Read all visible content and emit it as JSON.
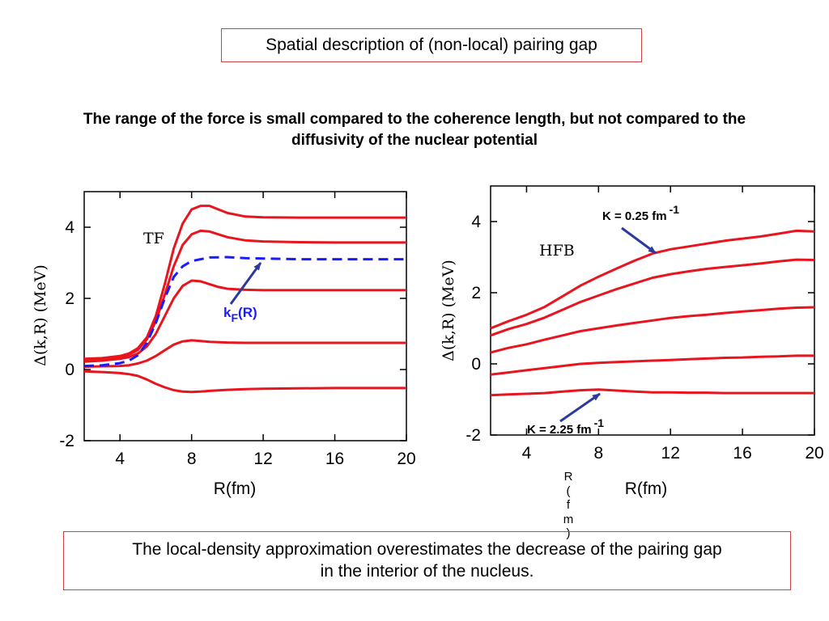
{
  "slide": {
    "title": "Spatial description of (non-local) pairing gap",
    "subtitle_line1": "The range of the force is small compared to the coherence length, but not compared to the",
    "subtitle_line2": "diffusivity  of the nuclear potential",
    "conclusion_line1": "The local-density approximation overestimates the decrease of the pairing gap",
    "conclusion_line2": "in the interior of the nucleus.",
    "stray_text": [
      "R",
      "(",
      "f",
      "m",
      ")"
    ]
  },
  "colors": {
    "curve": "#e8141e",
    "kf": "#1a1aff",
    "arrow": "#2b3a9c",
    "box_border": "#d04040"
  },
  "chart_data": [
    {
      "type": "line",
      "annotation": "TF",
      "xlabel": "R(fm)",
      "ylabel": "Δ(k,R) (MeV)",
      "xlim": [
        2,
        20
      ],
      "ylim": [
        -2,
        5
      ],
      "xticks": [
        "4",
        "8",
        "12",
        "16",
        "20"
      ],
      "yticks": [
        "-2",
        "0",
        "2",
        "4"
      ],
      "kf_label": "k",
      "kf_sub": "F",
      "kf_suffix": "(R)",
      "series": [
        {
          "x": [
            2,
            3,
            4,
            4.5,
            5,
            5.5,
            6,
            6.5,
            7,
            7.5,
            8,
            8.5,
            9,
            9.5,
            10,
            11,
            12,
            14,
            16,
            18,
            20
          ],
          "y": [
            0.3,
            0.32,
            0.38,
            0.45,
            0.6,
            0.9,
            1.5,
            2.4,
            3.4,
            4.1,
            4.5,
            4.6,
            4.6,
            4.5,
            4.4,
            4.3,
            4.28,
            4.27,
            4.27,
            4.27,
            4.27
          ]
        },
        {
          "x": [
            2,
            3,
            4,
            4.5,
            5,
            5.5,
            6,
            6.5,
            7,
            7.5,
            8,
            8.5,
            9,
            9.5,
            10,
            11,
            12,
            14,
            16,
            18,
            20
          ],
          "y": [
            0.27,
            0.3,
            0.35,
            0.42,
            0.55,
            0.85,
            1.35,
            2.1,
            2.9,
            3.5,
            3.8,
            3.9,
            3.88,
            3.8,
            3.72,
            3.63,
            3.6,
            3.58,
            3.57,
            3.57,
            3.57
          ]
        },
        {
          "x": [
            2,
            3,
            4,
            4.5,
            5,
            5.5,
            6,
            6.5,
            7,
            7.5,
            8,
            8.5,
            9,
            9.5,
            10,
            11,
            12,
            14,
            16,
            18,
            20
          ],
          "y": [
            0.22,
            0.25,
            0.3,
            0.35,
            0.45,
            0.65,
            1.0,
            1.5,
            2.0,
            2.35,
            2.5,
            2.48,
            2.4,
            2.32,
            2.27,
            2.24,
            2.23,
            2.23,
            2.23,
            2.23,
            2.23
          ]
        },
        {
          "x": [
            2,
            3,
            4,
            4.5,
            5,
            5.5,
            6,
            6.5,
            7,
            7.5,
            8,
            8.5,
            9,
            10,
            11,
            12,
            14,
            16,
            18,
            20
          ],
          "y": [
            0.08,
            0.09,
            0.1,
            0.12,
            0.17,
            0.25,
            0.38,
            0.54,
            0.7,
            0.79,
            0.82,
            0.8,
            0.78,
            0.76,
            0.75,
            0.75,
            0.75,
            0.75,
            0.75,
            0.75
          ]
        },
        {
          "x": [
            2,
            3,
            4,
            4.5,
            5,
            5.5,
            6,
            6.5,
            7,
            7.5,
            8,
            8.5,
            9,
            10,
            11,
            12,
            14,
            16,
            18,
            20
          ],
          "y": [
            -0.05,
            -0.07,
            -0.1,
            -0.13,
            -0.18,
            -0.28,
            -0.4,
            -0.5,
            -0.58,
            -0.62,
            -0.63,
            -0.62,
            -0.6,
            -0.57,
            -0.55,
            -0.54,
            -0.53,
            -0.52,
            -0.52,
            -0.52
          ]
        }
      ],
      "kf_series": {
        "x": [
          2,
          3,
          4,
          4.5,
          5,
          5.5,
          6,
          6.5,
          7,
          7.5,
          8,
          8.5,
          9,
          10,
          11,
          12,
          14,
          16,
          18,
          20
        ],
        "y": [
          0.1,
          0.12,
          0.18,
          0.25,
          0.4,
          0.75,
          1.3,
          2.0,
          2.6,
          2.9,
          3.05,
          3.1,
          3.15,
          3.16,
          3.13,
          3.12,
          3.1,
          3.1,
          3.1,
          3.1
        ]
      }
    },
    {
      "type": "line",
      "annotation": "HFB",
      "xlabel": "R(fm)",
      "ylabel": "Δ(k,R) (MeV)",
      "xlim": [
        2,
        20
      ],
      "ylim": [
        -2,
        5
      ],
      "xticks": [
        "4",
        "8",
        "12",
        "16",
        "20"
      ],
      "yticks": [
        "-2",
        "0",
        "2",
        "4"
      ],
      "label_top": "K = 0.25 fm",
      "label_top_exp": "-1",
      "label_bottom": "K = 2.25 fm",
      "label_bottom_exp": "-1",
      "series": [
        {
          "x": [
            2,
            3,
            4,
            5,
            6,
            7,
            8,
            9,
            10,
            11,
            12,
            13,
            14,
            15,
            16,
            17,
            18,
            19,
            20
          ],
          "y": [
            1.0,
            1.2,
            1.38,
            1.6,
            1.9,
            2.2,
            2.45,
            2.68,
            2.9,
            3.1,
            3.22,
            3.3,
            3.38,
            3.46,
            3.52,
            3.58,
            3.66,
            3.74,
            3.72
          ]
        },
        {
          "x": [
            2,
            3,
            4,
            5,
            6,
            7,
            8,
            9,
            10,
            11,
            12,
            13,
            14,
            15,
            16,
            17,
            18,
            19,
            20
          ],
          "y": [
            0.8,
            0.98,
            1.12,
            1.3,
            1.52,
            1.74,
            1.92,
            2.1,
            2.26,
            2.42,
            2.52,
            2.6,
            2.67,
            2.72,
            2.77,
            2.82,
            2.88,
            2.93,
            2.92
          ]
        },
        {
          "x": [
            2,
            3,
            4,
            5,
            6,
            7,
            8,
            9,
            10,
            11,
            12,
            13,
            14,
            15,
            16,
            17,
            18,
            19,
            20
          ],
          "y": [
            0.32,
            0.45,
            0.55,
            0.68,
            0.8,
            0.92,
            1.0,
            1.08,
            1.15,
            1.22,
            1.29,
            1.34,
            1.38,
            1.43,
            1.47,
            1.51,
            1.55,
            1.58,
            1.59
          ]
        },
        {
          "x": [
            2,
            3,
            4,
            5,
            6,
            7,
            8,
            9,
            10,
            11,
            12,
            13,
            14,
            15,
            16,
            17,
            18,
            19,
            20
          ],
          "y": [
            -0.3,
            -0.24,
            -0.18,
            -0.12,
            -0.06,
            0.0,
            0.03,
            0.05,
            0.07,
            0.09,
            0.11,
            0.13,
            0.15,
            0.17,
            0.18,
            0.2,
            0.21,
            0.23,
            0.23
          ]
        },
        {
          "x": [
            2,
            3,
            4,
            5,
            6,
            7,
            8,
            9,
            10,
            11,
            12,
            13,
            14,
            15,
            16,
            17,
            18,
            19,
            20
          ],
          "y": [
            -0.88,
            -0.86,
            -0.84,
            -0.82,
            -0.78,
            -0.74,
            -0.72,
            -0.75,
            -0.78,
            -0.8,
            -0.8,
            -0.81,
            -0.81,
            -0.82,
            -0.82,
            -0.82,
            -0.82,
            -0.82,
            -0.82
          ]
        }
      ]
    }
  ]
}
